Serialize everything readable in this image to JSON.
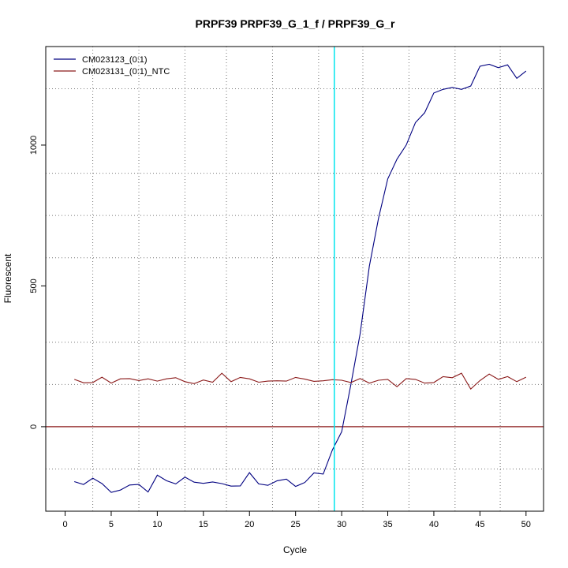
{
  "chart_data": {
    "type": "line",
    "title": "PRPF39  PRPF39_G_1_f / PRPF39_G_r",
    "xlabel": "Cycle",
    "ylabel": "Fluorescent",
    "xlim": [
      -2.1,
      51.9
    ],
    "ylim": [
      -300,
      1350
    ],
    "x_ticks": [
      0,
      5,
      10,
      15,
      20,
      25,
      30,
      35,
      40,
      45,
      50
    ],
    "x_tick_labels": [
      "0",
      "5",
      "10",
      "15",
      "20",
      "25",
      "30",
      "35",
      "40",
      "45",
      "50"
    ],
    "y_ticks": [
      0,
      500,
      1000
    ],
    "y_tick_labels": [
      "0",
      "500",
      "1000"
    ],
    "v_grid": [
      3,
      8,
      13,
      17.5,
      22.5,
      27.5,
      32.3,
      37.3,
      42.3,
      47.2
    ],
    "h_grid": [
      -150,
      150,
      300,
      600,
      750,
      900,
      1200
    ],
    "threshold_line": {
      "x": 29.2,
      "color": "#00e5ee"
    },
    "baseline": {
      "y": 0,
      "color": "#8b1a1a"
    },
    "legend_position": "top-left",
    "grid": true,
    "series": [
      {
        "name": "CM023123_(0:1)",
        "color": "#000080",
        "x": [
          1,
          2,
          3,
          4,
          5,
          6,
          7,
          8,
          9,
          10,
          11,
          12,
          13,
          14,
          15,
          16,
          17,
          18,
          19,
          20,
          21,
          22,
          23,
          24,
          25,
          26,
          27,
          28,
          29,
          30,
          31,
          32,
          33,
          34,
          35,
          36,
          37,
          38,
          39,
          40,
          41,
          42,
          43,
          44,
          45,
          46,
          47,
          48,
          49,
          50
        ],
        "y": [
          -195,
          -205,
          -183,
          -202,
          -233,
          -225,
          -207,
          -205,
          -232,
          -172,
          -192,
          -203,
          -179,
          -197,
          -201,
          -196,
          -202,
          -211,
          -210,
          -163,
          -203,
          -208,
          -192,
          -186,
          -212,
          -198,
          -164,
          -168,
          -82,
          -18,
          150,
          330,
          570,
          740,
          880,
          950,
          1000,
          1080,
          1115,
          1185,
          1198,
          1205,
          1198,
          1210,
          1280,
          1287,
          1275,
          1285,
          1237,
          1263
        ]
      },
      {
        "name": "CM023131_(0:1)_NTC",
        "color": "#8b1a1a",
        "x": [
          1,
          2,
          3,
          4,
          5,
          6,
          7,
          8,
          9,
          10,
          11,
          12,
          13,
          14,
          15,
          16,
          17,
          18,
          19,
          20,
          21,
          22,
          23,
          24,
          25,
          26,
          27,
          28,
          29,
          30,
          31,
          32,
          33,
          34,
          35,
          36,
          37,
          38,
          39,
          40,
          41,
          42,
          43,
          44,
          45,
          46,
          47,
          48,
          49,
          50
        ],
        "y": [
          168,
          156,
          157,
          176,
          155,
          170,
          171,
          164,
          170,
          162,
          170,
          174,
          160,
          153,
          166,
          158,
          190,
          160,
          175,
          170,
          158,
          162,
          163,
          162,
          175,
          169,
          161,
          163,
          167,
          165,
          157,
          171,
          155,
          165,
          168,
          142,
          171,
          168,
          155,
          157,
          178,
          174,
          190,
          134,
          164,
          187,
          168,
          178,
          160,
          176
        ]
      }
    ]
  }
}
